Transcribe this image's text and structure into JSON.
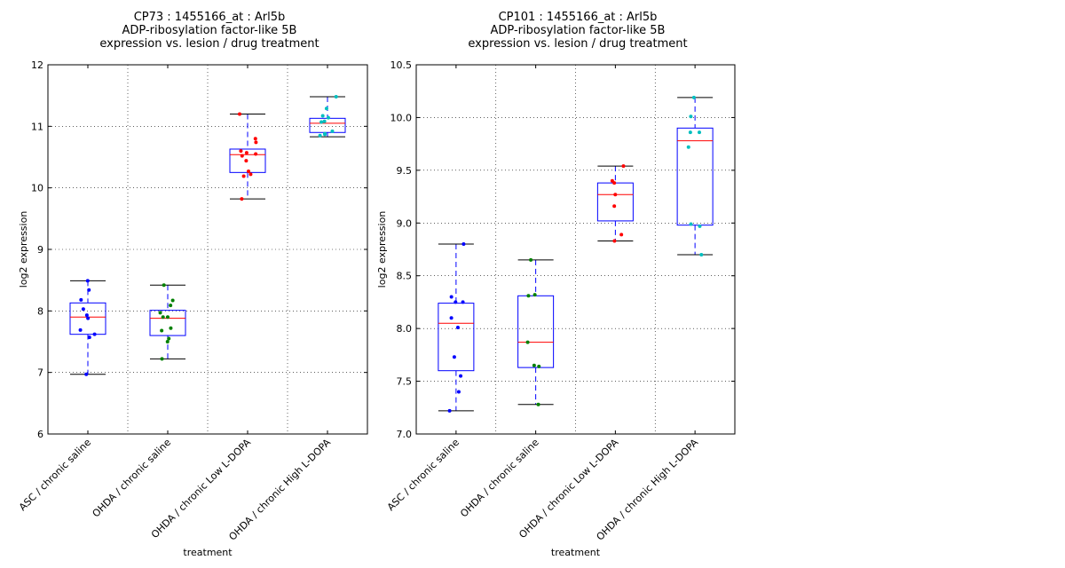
{
  "chart_data": [
    {
      "type": "box",
      "title_lines": [
        "CP73 : 1455166_at : Arl5b",
        "ADP-ribosylation factor-like 5B",
        "expression vs. lesion / drug treatment"
      ],
      "xlabel": "treatment",
      "ylabel": "log2 expression",
      "ylim": [
        6,
        12
      ],
      "yticks": [
        6,
        7,
        8,
        9,
        10,
        11,
        12
      ],
      "ytick_labels": [
        "6",
        "7",
        "8",
        "9",
        "10",
        "11",
        "12"
      ],
      "grid": true,
      "categories": [
        "ASC / chronic saline",
        "OHDA / chronic saline",
        "OHDA / chronic Low L-DOPA",
        "OHDA / chronic High L-DOPA"
      ],
      "boxes": [
        {
          "whisker_low": 6.97,
          "q1": 7.62,
          "median": 7.9,
          "q3": 8.13,
          "whisker_high": 8.49,
          "color": "#0000ff",
          "points": [
            8.49,
            8.34,
            8.18,
            8.03,
            7.93,
            7.88,
            7.69,
            7.62,
            7.57,
            6.97
          ]
        },
        {
          "whisker_low": 7.22,
          "q1": 7.6,
          "median": 7.88,
          "q3": 8.01,
          "whisker_high": 8.42,
          "color": "#008000",
          "points": [
            8.42,
            8.17,
            8.09,
            7.97,
            7.9,
            7.9,
            7.72,
            7.68,
            7.55,
            7.5,
            7.22
          ]
        },
        {
          "whisker_low": 9.82,
          "q1": 10.25,
          "median": 10.54,
          "q3": 10.63,
          "whisker_high": 11.2,
          "color": "#ff0000",
          "points": [
            11.2,
            10.8,
            10.74,
            10.6,
            10.57,
            10.55,
            10.52,
            10.44,
            10.27,
            10.22,
            10.19,
            9.82
          ]
        },
        {
          "whisker_low": 10.83,
          "q1": 10.9,
          "median": 11.05,
          "q3": 11.13,
          "whisker_high": 11.48,
          "color": "#00bfbf",
          "points": [
            11.48,
            11.29,
            11.17,
            11.14,
            11.08,
            11.07,
            10.92,
            10.88,
            10.87,
            10.85
          ]
        }
      ]
    },
    {
      "type": "box",
      "title_lines": [
        "CP101 : 1455166_at : Arl5b",
        "ADP-ribosylation factor-like 5B",
        "expression vs. lesion / drug treatment"
      ],
      "xlabel": "treatment",
      "ylabel": "log2 expression",
      "ylim": [
        7.0,
        10.5
      ],
      "yticks": [
        7.0,
        7.5,
        8.0,
        8.5,
        9.0,
        9.5,
        10.0,
        10.5
      ],
      "ytick_labels": [
        "7.0",
        "7.5",
        "8.0",
        "8.5",
        "9.0",
        "9.5",
        "10.0",
        "10.5"
      ],
      "grid": true,
      "categories": [
        "ASC / chronic saline",
        "OHDA / chronic saline",
        "OHDA / chronic Low L-DOPA",
        "OHDA / chronic High L-DOPA"
      ],
      "boxes": [
        {
          "whisker_low": 7.22,
          "q1": 7.6,
          "median": 8.05,
          "q3": 8.24,
          "whisker_high": 8.8,
          "color": "#0000ff",
          "points": [
            8.8,
            8.3,
            8.25,
            8.25,
            8.1,
            8.01,
            7.73,
            7.55,
            7.4,
            7.22
          ]
        },
        {
          "whisker_low": 7.28,
          "q1": 7.63,
          "median": 7.87,
          "q3": 8.31,
          "whisker_high": 8.65,
          "color": "#008000",
          "points": [
            8.65,
            8.32,
            8.31,
            7.87,
            7.65,
            7.64,
            7.28
          ]
        },
        {
          "whisker_low": 8.83,
          "q1": 9.02,
          "median": 9.27,
          "q3": 9.38,
          "whisker_high": 9.54,
          "color": "#ff0000",
          "points": [
            9.54,
            9.4,
            9.38,
            9.27,
            9.16,
            8.89,
            8.83
          ]
        },
        {
          "whisker_low": 8.7,
          "q1": 8.98,
          "median": 9.78,
          "q3": 9.9,
          "whisker_high": 10.19,
          "color": "#00bfbf",
          "points": [
            10.19,
            10.01,
            9.86,
            9.86,
            9.72,
            8.99,
            8.97,
            8.7
          ]
        }
      ]
    }
  ]
}
